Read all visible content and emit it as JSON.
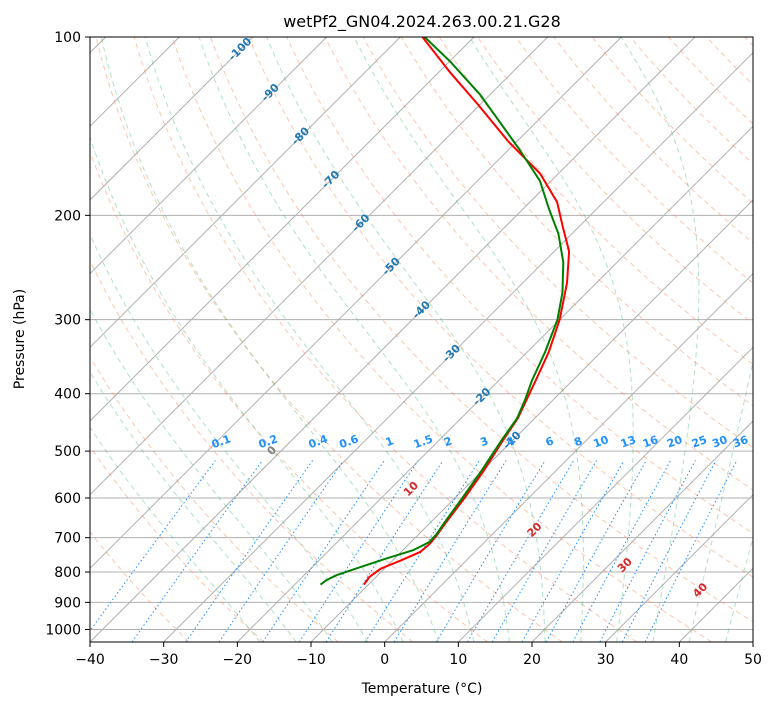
{
  "chart_data": {
    "type": "line",
    "subtype": "skew-T log-p diagram",
    "title": "wetPf2_GN04.2024.263.00.21.G28",
    "xlabel": "Temperature (°C)",
    "ylabel": "Pressure (hPa)",
    "xlim": [
      -40,
      50
    ],
    "ylim": [
      1050,
      100
    ],
    "y_scale": "log",
    "grid": true,
    "x_ticks": [
      -40,
      -30,
      -20,
      -10,
      0,
      10,
      20,
      30,
      40,
      50
    ],
    "y_ticks": [
      100,
      200,
      300,
      400,
      500,
      600,
      700,
      800,
      900,
      1000
    ],
    "colors": {
      "temperature": "#ff0000",
      "dewpoint": "#008000",
      "isotherm_labels": "#1f77b4",
      "mixing_ratio": "#1e90ff",
      "moist_adiabat_labels": "#d62728",
      "dry_adiabat": "#ff7f50",
      "moist_adiabat": "#3cb371"
    },
    "isotherm_labels": [
      {
        "t": -100,
        "text": "-100"
      },
      {
        "t": -90,
        "text": "-90"
      },
      {
        "t": -80,
        "text": "-80"
      },
      {
        "t": -70,
        "text": "-70"
      },
      {
        "t": -60,
        "text": "-60"
      },
      {
        "t": -50,
        "text": "-50"
      },
      {
        "t": -40,
        "text": "-40"
      },
      {
        "t": -30,
        "text": "-30"
      },
      {
        "t": -20,
        "text": "-20"
      },
      {
        "t": -10,
        "text": "-10"
      }
    ],
    "mixing_ratio_labels": [
      "0.1",
      "0.2",
      "0.4",
      "0.6",
      "1",
      "1.5",
      "2",
      "3",
      "4",
      "6",
      "8",
      "10",
      "13",
      "16",
      "20",
      "25",
      "30",
      "36"
    ],
    "moist_adiabat_labels": [
      {
        "t": 0,
        "text": "0"
      },
      {
        "t": 10,
        "text": "10"
      },
      {
        "t": 20,
        "text": "20"
      },
      {
        "t": 30,
        "text": "30"
      },
      {
        "t": 40,
        "text": "40"
      }
    ],
    "series": [
      {
        "name": "Temperature",
        "color": "#ff0000",
        "points": [
          {
            "p": 840,
            "t": -10.6
          },
          {
            "p": 815,
            "t": -10.9
          },
          {
            "p": 790,
            "t": -10.5
          },
          {
            "p": 765,
            "t": -8.9
          },
          {
            "p": 740,
            "t": -7.4
          },
          {
            "p": 718,
            "t": -7.2
          },
          {
            "p": 695,
            "t": -7.4
          },
          {
            "p": 660,
            "t": -7.9
          },
          {
            "p": 600,
            "t": -8.7
          },
          {
            "p": 540,
            "t": -9.8
          },
          {
            "p": 480,
            "t": -11.3
          },
          {
            "p": 440,
            "t": -12.3
          },
          {
            "p": 410,
            "t": -13.6
          },
          {
            "p": 380,
            "t": -15.0
          },
          {
            "p": 340,
            "t": -17.1
          },
          {
            "p": 300,
            "t": -20.0
          },
          {
            "p": 260,
            "t": -24.0
          },
          {
            "p": 230,
            "t": -28.0
          },
          {
            "p": 210,
            "t": -32.0
          },
          {
            "p": 190,
            "t": -36.3
          },
          {
            "p": 170,
            "t": -42.5
          },
          {
            "p": 150,
            "t": -51.2
          },
          {
            "p": 130,
            "t": -60.3
          },
          {
            "p": 115,
            "t": -68.3
          },
          {
            "p": 100,
            "t": -77.0
          }
        ]
      },
      {
        "name": "Dewpoint",
        "color": "#008000",
        "points": [
          {
            "p": 840,
            "t": -16.5
          },
          {
            "p": 825,
            "t": -16.3
          },
          {
            "p": 810,
            "t": -15.6
          },
          {
            "p": 785,
            "t": -13.5
          },
          {
            "p": 760,
            "t": -11.2
          },
          {
            "p": 735,
            "t": -8.6
          },
          {
            "p": 712,
            "t": -7.5
          },
          {
            "p": 690,
            "t": -7.6
          },
          {
            "p": 660,
            "t": -8.1
          },
          {
            "p": 600,
            "t": -9.0
          },
          {
            "p": 540,
            "t": -10.1
          },
          {
            "p": 480,
            "t": -11.5
          },
          {
            "p": 440,
            "t": -12.4
          },
          {
            "p": 410,
            "t": -13.8
          },
          {
            "p": 380,
            "t": -15.5
          },
          {
            "p": 340,
            "t": -17.6
          },
          {
            "p": 300,
            "t": -20.3
          },
          {
            "p": 270,
            "t": -23.3
          },
          {
            "p": 240,
            "t": -27.3
          },
          {
            "p": 215,
            "t": -31.8
          },
          {
            "p": 195,
            "t": -36.5
          },
          {
            "p": 175,
            "t": -41.5
          },
          {
            "p": 155,
            "t": -48.5
          },
          {
            "p": 140,
            "t": -54.6
          },
          {
            "p": 125,
            "t": -61.4
          },
          {
            "p": 110,
            "t": -69.9
          },
          {
            "p": 100,
            "t": -76.7
          }
        ]
      }
    ]
  }
}
